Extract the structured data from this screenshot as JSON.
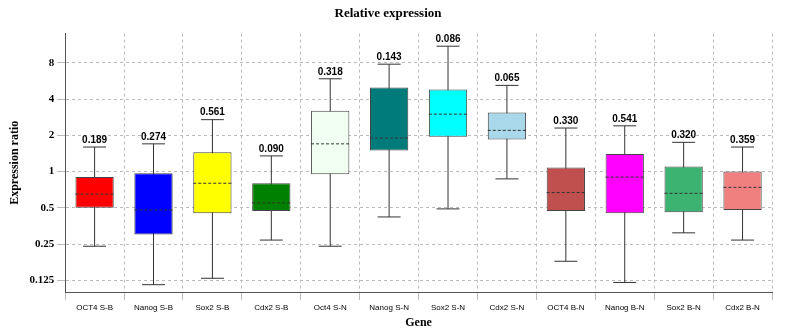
{
  "chart_data": {
    "type": "box",
    "title": "Relative expression",
    "x_label": "Gene",
    "y_label": "Expression ratio",
    "categories": [
      "OCT4 S-B",
      "Nanog S-B",
      "Sox2 S-B",
      "Cdx2 S-B",
      "Oct4 S-N",
      "Nanog S-N",
      "Sox2 S-N",
      "Cdx2 S-N",
      "OCT4 B-N",
      "Nanog B-N",
      "Sox2 B-N",
      "Cdx2 B-N"
    ],
    "whisker_low": [
      0.24,
      0.115,
      0.13,
      0.27,
      0.24,
      0.42,
      0.49,
      0.87,
      0.18,
      0.12,
      0.31,
      0.27
    ],
    "q1": [
      0.5,
      0.3,
      0.45,
      0.47,
      0.95,
      1.5,
      1.95,
      1.85,
      0.47,
      0.45,
      0.46,
      0.48
    ],
    "median": [
      0.65,
      0.48,
      0.8,
      0.55,
      1.7,
      1.9,
      3.0,
      2.2,
      0.67,
      0.9,
      0.66,
      0.74
    ],
    "q3": [
      0.9,
      0.97,
      1.45,
      0.8,
      3.2,
      5.0,
      4.8,
      3.1,
      1.08,
      1.4,
      1.1,
      1.0
    ],
    "whisker_high": [
      1.6,
      1.7,
      2.7,
      1.35,
      5.9,
      7.8,
      11,
      5.2,
      2.3,
      2.4,
      1.75,
      1.6
    ],
    "p_values": [
      0.189,
      0.274,
      0.561,
      0.09,
      0.318,
      0.143,
      0.086,
      0.065,
      0.33,
      0.541,
      0.32,
      0.359
    ],
    "p_value_labels": [
      "0.189",
      "0.274",
      "0.561",
      "0.090",
      "0.318",
      "0.143",
      "0.086",
      "0.065",
      "0.330",
      "0.541",
      "0.320",
      "0.359"
    ],
    "colors": [
      "#ff0000",
      "#0000ff",
      "#ffff00",
      "#008000",
      "#f0fff0",
      "#007b7b",
      "#00ffff",
      "#a8d8ea",
      "#c0504d",
      "#ff00ff",
      "#3cb371",
      "#f08080"
    ],
    "log": "y",
    "ylim": [
      0.1,
      14
    ],
    "yticks": [
      0.125,
      0.25,
      0.5,
      1,
      2,
      4,
      8
    ],
    "grid": true
  }
}
